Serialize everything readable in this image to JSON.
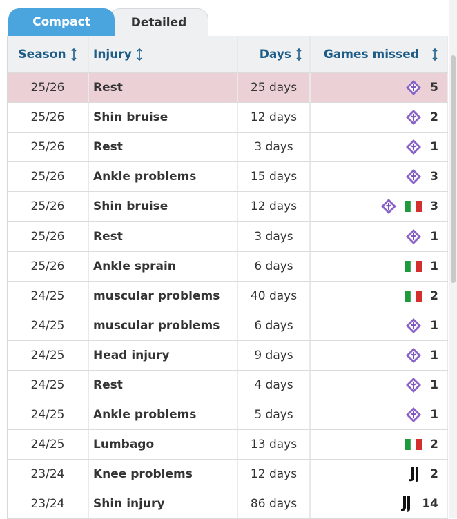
{
  "tabs": [
    "Compact",
    "Detailed"
  ],
  "table": {
    "headers": [
      "Season",
      "Injury",
      "Days",
      "Games missed"
    ],
    "rows": [
      [
        "25/26",
        "Rest",
        "25 days",
        5
      ],
      [
        "25/26",
        "Shin bruise",
        "12 days",
        2
      ],
      [
        "25/26",
        "Rest",
        "3 days",
        1
      ],
      [
        "25/26",
        "Ankle problems",
        "15 days",
        3
      ],
      [
        "25/26",
        "Shin bruise",
        "12 days",
        3
      ],
      [
        "25/26",
        "Rest",
        "3 days",
        1
      ],
      [
        "25/26",
        "Ankle sprain",
        "6 days",
        1
      ],
      [
        "24/25",
        "muscular problems",
        "40 days",
        2
      ],
      [
        "24/25",
        "muscular problems",
        "6 days",
        1
      ],
      [
        "24/25",
        "Head injury",
        "9 days",
        1
      ],
      [
        "24/25",
        "Rest",
        "4 days",
        1
      ],
      [
        "24/25",
        "Ankle problems",
        "5 days",
        1
      ],
      [
        "24/25",
        "Lumbago",
        "13 days",
        2
      ],
      [
        "23/24",
        "Knee problems",
        "12 days",
        2
      ],
      [
        "23/24",
        "Shin injury",
        "86 days",
        14
      ]
    ]
  }
}
